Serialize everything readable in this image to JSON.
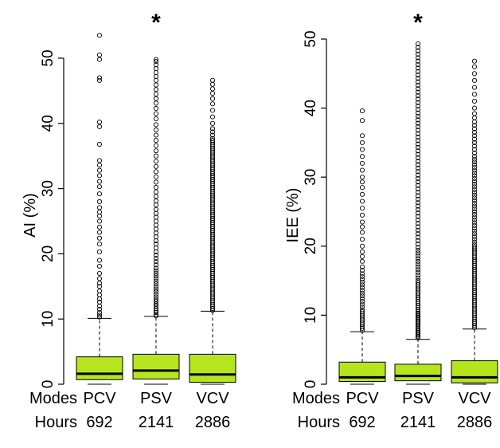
{
  "chart_data": [
    {
      "type": "box",
      "ylabel": "AI (%)",
      "ylim": [
        0,
        53
      ],
      "yticks": [
        "0",
        "10",
        "20",
        "30",
        "40",
        "50"
      ],
      "box_color": "#b5e61d",
      "significance_marker": "*",
      "significance_group": "PSV",
      "categories": [
        "PCV",
        "PSV",
        "VCV"
      ],
      "hours": [
        "692",
        "2141",
        "2886"
      ],
      "boxes": [
        {
          "name": "PCV",
          "q1": 0.7,
          "median": 1.6,
          "q3": 4.2,
          "whisker_low": 0,
          "whisker_high": 10.1,
          "outliers": [
            10.3,
            10.6,
            11.0,
            11.5,
            12.0,
            12.6,
            13.1,
            13.7,
            14.3,
            15.0,
            15.5,
            16.2,
            17.0,
            18.1,
            19.0,
            20.3,
            21.5,
            22.4,
            23.3,
            24.1,
            25.0,
            25.8,
            26.4,
            27.1,
            28.0,
            29.2,
            30.3,
            31.1,
            32.0,
            32.8,
            33.6,
            34.3,
            36.8,
            39.5,
            40.2,
            46.6,
            47.0,
            49.8,
            50.5,
            53.5
          ]
        },
        {
          "name": "PSV",
          "q1": 0.8,
          "median": 2.1,
          "q3": 4.6,
          "whisker_low": 0,
          "whisker_high": 10.4,
          "outliers": [
            10.5,
            10.7,
            11.0,
            11.3,
            11.6,
            12.0,
            12.3,
            12.7,
            13.0,
            13.4,
            13.8,
            14.2,
            14.6,
            15.0,
            15.4,
            15.8,
            16.2,
            16.6,
            17.0,
            17.4,
            17.8,
            18.3,
            18.8,
            19.3,
            19.8,
            20.3,
            20.9,
            21.5,
            22.0,
            22.6,
            23.2,
            23.8,
            24.4,
            25.0,
            25.6,
            26.2,
            26.8,
            27.5,
            28.1,
            28.8,
            29.5,
            30.2,
            31.0,
            31.8,
            32.6,
            33.4,
            34.2,
            35.0,
            35.8,
            36.6,
            37.4,
            38.2,
            39.0,
            39.8,
            40.7,
            41.5,
            42.3,
            43.1,
            43.8,
            44.5,
            45.2,
            45.9,
            46.6,
            47.2,
            47.8,
            48.4,
            49.0,
            49.5,
            49.8
          ]
        },
        {
          "name": "VCV",
          "q1": 0.3,
          "median": 1.5,
          "q3": 4.6,
          "whisker_low": 0,
          "whisker_high": 11.2,
          "outliers": [
            11.3,
            11.6,
            11.9,
            12.2,
            12.5,
            12.8,
            13.1,
            13.4,
            13.7,
            14.0,
            14.3,
            14.6,
            14.9,
            15.2,
            15.5,
            15.8,
            16.1,
            16.4,
            16.7,
            17.0,
            17.3,
            17.6,
            17.9,
            18.2,
            18.5,
            18.8,
            19.1,
            19.4,
            19.7,
            20.0,
            20.3,
            20.6,
            20.9,
            21.2,
            21.5,
            21.8,
            22.1,
            22.4,
            22.7,
            23.0,
            23.3,
            23.6,
            23.9,
            24.2,
            24.5,
            24.8,
            25.1,
            25.4,
            25.7,
            26.0,
            26.3,
            26.6,
            26.9,
            27.2,
            27.5,
            27.8,
            28.1,
            28.4,
            28.7,
            29.0,
            29.3,
            29.6,
            29.9,
            30.2,
            30.5,
            30.8,
            31.1,
            31.4,
            31.7,
            32.0,
            32.3,
            32.6,
            32.9,
            33.2,
            33.5,
            33.8,
            34.1,
            34.4,
            34.7,
            35.0,
            35.3,
            35.6,
            35.9,
            36.2,
            36.5,
            36.8,
            37.1,
            37.4,
            37.7,
            38.2,
            38.7,
            39.2,
            40.0,
            41.0,
            42.0,
            43.0,
            43.8,
            44.6,
            45.3,
            46.0,
            46.6
          ]
        }
      ]
    },
    {
      "type": "box",
      "ylabel": "IEE (%)",
      "ylim": [
        0,
        51
      ],
      "yticks": [
        "0",
        "10",
        "20",
        "30",
        "40",
        "50"
      ],
      "box_color": "#b5e61d",
      "significance_marker": "*",
      "significance_group": "PSV",
      "categories": [
        "PCV",
        "PSV",
        "VCV"
      ],
      "hours": [
        "692",
        "2141",
        "2886"
      ],
      "boxes": [
        {
          "name": "PCV",
          "q1": 0.4,
          "median": 1.0,
          "q3": 3.2,
          "whisker_low": 0,
          "whisker_high": 7.6,
          "outliers": [
            7.8,
            8.1,
            8.4,
            8.7,
            9.0,
            9.3,
            9.6,
            9.9,
            10.2,
            10.5,
            10.8,
            11.2,
            11.6,
            12.0,
            12.4,
            12.8,
            13.2,
            13.6,
            14.0,
            14.4,
            14.8,
            15.2,
            15.6,
            16.0,
            16.5,
            17.0,
            17.8,
            18.5,
            19.2,
            20.0,
            21.0,
            22.0,
            22.8,
            23.5,
            24.5,
            25.5,
            26.5,
            27.5,
            28.5,
            29.3,
            30.0,
            31.0,
            32.0,
            33.0,
            34.0,
            35.0,
            36.0,
            38.2,
            39.6
          ]
        },
        {
          "name": "PSV",
          "q1": 0.5,
          "median": 1.2,
          "q3": 2.9,
          "whisker_low": 0,
          "whisker_high": 6.5,
          "outliers": [
            6.7,
            6.9,
            7.1,
            7.3,
            7.5,
            7.7,
            7.9,
            8.1,
            8.3,
            8.5,
            8.7,
            8.9,
            9.1,
            9.3,
            9.5,
            9.7,
            9.9,
            10.1,
            10.3,
            10.5,
            10.8,
            11.1,
            11.4,
            11.7,
            12.0,
            12.3,
            12.6,
            12.9,
            13.2,
            13.5,
            13.8,
            14.1,
            14.4,
            14.7,
            15.0,
            15.4,
            15.8,
            16.2,
            16.6,
            17.0,
            17.4,
            17.8,
            18.2,
            18.6,
            19.0,
            19.4,
            19.8,
            20.3,
            20.8,
            21.3,
            21.8,
            22.3,
            22.8,
            23.3,
            23.8,
            24.3,
            24.8,
            25.3,
            25.8,
            26.3,
            26.8,
            27.3,
            27.8,
            28.3,
            28.8,
            29.3,
            29.8,
            30.3,
            30.8,
            31.3,
            31.8,
            32.3,
            32.8,
            33.3,
            33.8,
            34.3,
            34.8,
            35.3,
            35.8,
            36.3,
            36.8,
            37.3,
            37.8,
            38.3,
            38.8,
            39.3,
            39.8,
            40.3,
            40.8,
            41.3,
            41.8,
            42.3,
            42.8,
            43.3,
            43.8,
            44.3,
            44.8,
            45.3,
            45.8,
            46.3,
            46.8,
            47.3,
            47.8,
            48.3,
            48.8,
            49.3
          ]
        },
        {
          "name": "VCV",
          "q1": 0.2,
          "median": 1.0,
          "q3": 3.4,
          "whisker_low": 0,
          "whisker_high": 8.0,
          "outliers": [
            8.2,
            8.5,
            8.8,
            9.1,
            9.4,
            9.7,
            10.0,
            10.3,
            10.6,
            10.9,
            11.2,
            11.5,
            11.8,
            12.1,
            12.4,
            12.7,
            13.0,
            13.3,
            13.6,
            13.9,
            14.2,
            14.5,
            14.8,
            15.1,
            15.4,
            15.7,
            16.0,
            16.3,
            16.6,
            16.9,
            17.2,
            17.5,
            17.8,
            18.1,
            18.4,
            18.7,
            19.0,
            19.3,
            19.6,
            19.9,
            20.2,
            20.6,
            21.0,
            21.4,
            21.8,
            22.2,
            22.6,
            23.0,
            23.4,
            23.8,
            24.2,
            24.6,
            25.0,
            25.4,
            25.8,
            26.2,
            26.6,
            27.0,
            27.4,
            27.8,
            28.2,
            28.6,
            29.0,
            29.4,
            29.8,
            30.2,
            30.6,
            31.0,
            31.4,
            31.8,
            32.2,
            32.6,
            33.0,
            33.5,
            34.0,
            34.5,
            35.0,
            35.5,
            36.0,
            36.5,
            37.0,
            37.5,
            38.0,
            38.6,
            39.2,
            40.0,
            41.0,
            42.0,
            43.0,
            44.0,
            45.0,
            46.0,
            46.8
          ]
        }
      ]
    }
  ],
  "footer": {
    "modes_label": "Modes",
    "hours_label": "Hours"
  }
}
